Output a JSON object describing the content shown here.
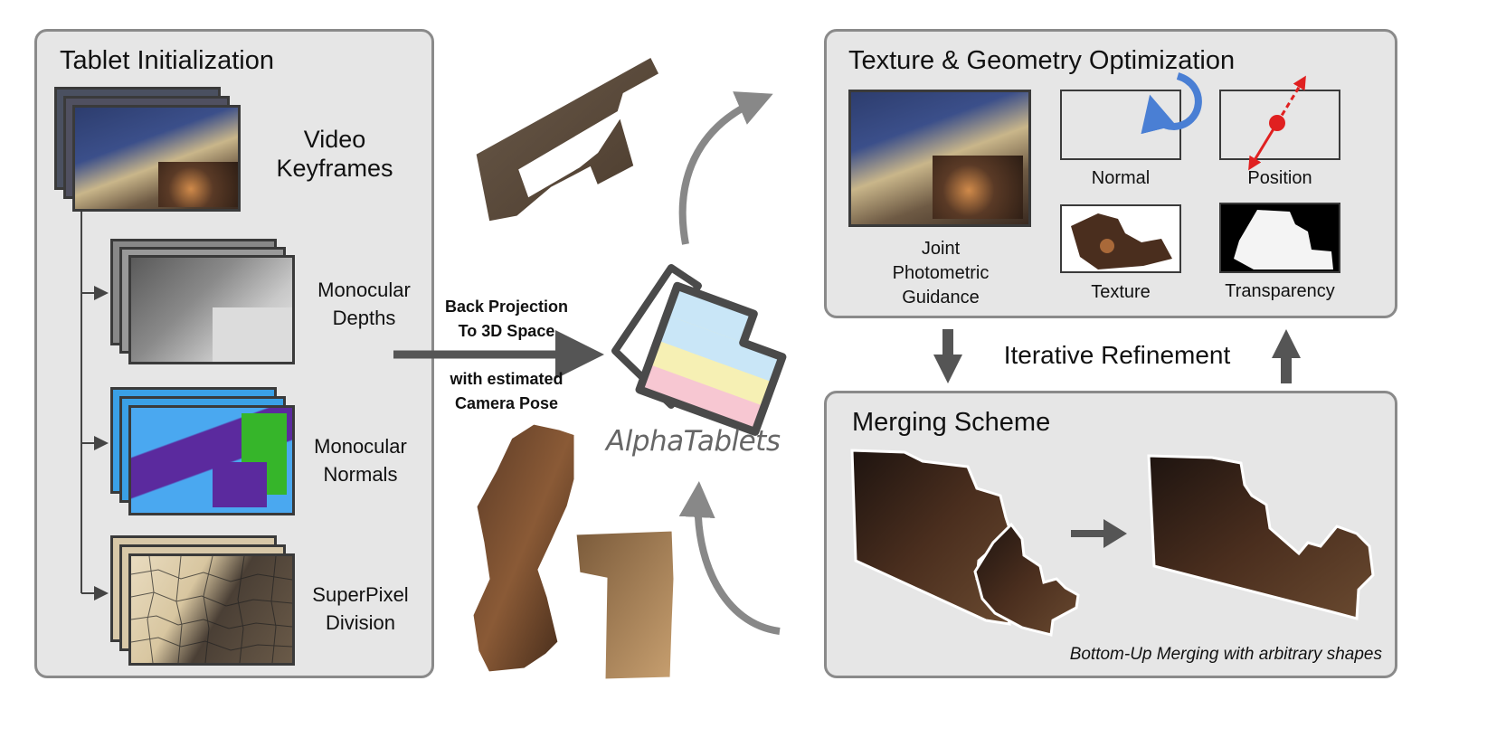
{
  "tablet_initialization": {
    "title": "Tablet Initialization",
    "video_keyframes": [
      "Video",
      "Keyframes"
    ],
    "monocular_depths": [
      "Monocular",
      "Depths"
    ],
    "monocular_normals": [
      "Monocular",
      "Normals"
    ],
    "superpixel_division": [
      "SuperPixel",
      "Division"
    ]
  },
  "projection": {
    "line1": "Back Projection",
    "line2": "To 3D Space",
    "line3": "with estimated",
    "line4": "Camera Pose"
  },
  "logo": {
    "text": "AlphaTablets",
    "colors": [
      "#c9e6f7",
      "#f6f0b4",
      "#f7c7d2"
    ]
  },
  "texture_geometry": {
    "title": "Texture & Geometry Optimization",
    "joint": [
      "Joint",
      "Photometric",
      "Guidance"
    ],
    "normal": "Normal",
    "position": "Position",
    "texture": "Texture",
    "transparency": "Transparency"
  },
  "iterative_refinement": "Iterative Refinement",
  "merging": {
    "title": "Merging Scheme",
    "caption": "Bottom-Up Merging with arbitrary shapes"
  },
  "colors": {
    "panel_bg": "#e6e6e6",
    "panel_border": "#8a8a8a",
    "arrow": "#555555",
    "rotate_arrow": "#4a7fd4",
    "position_marker": "#e02020"
  }
}
